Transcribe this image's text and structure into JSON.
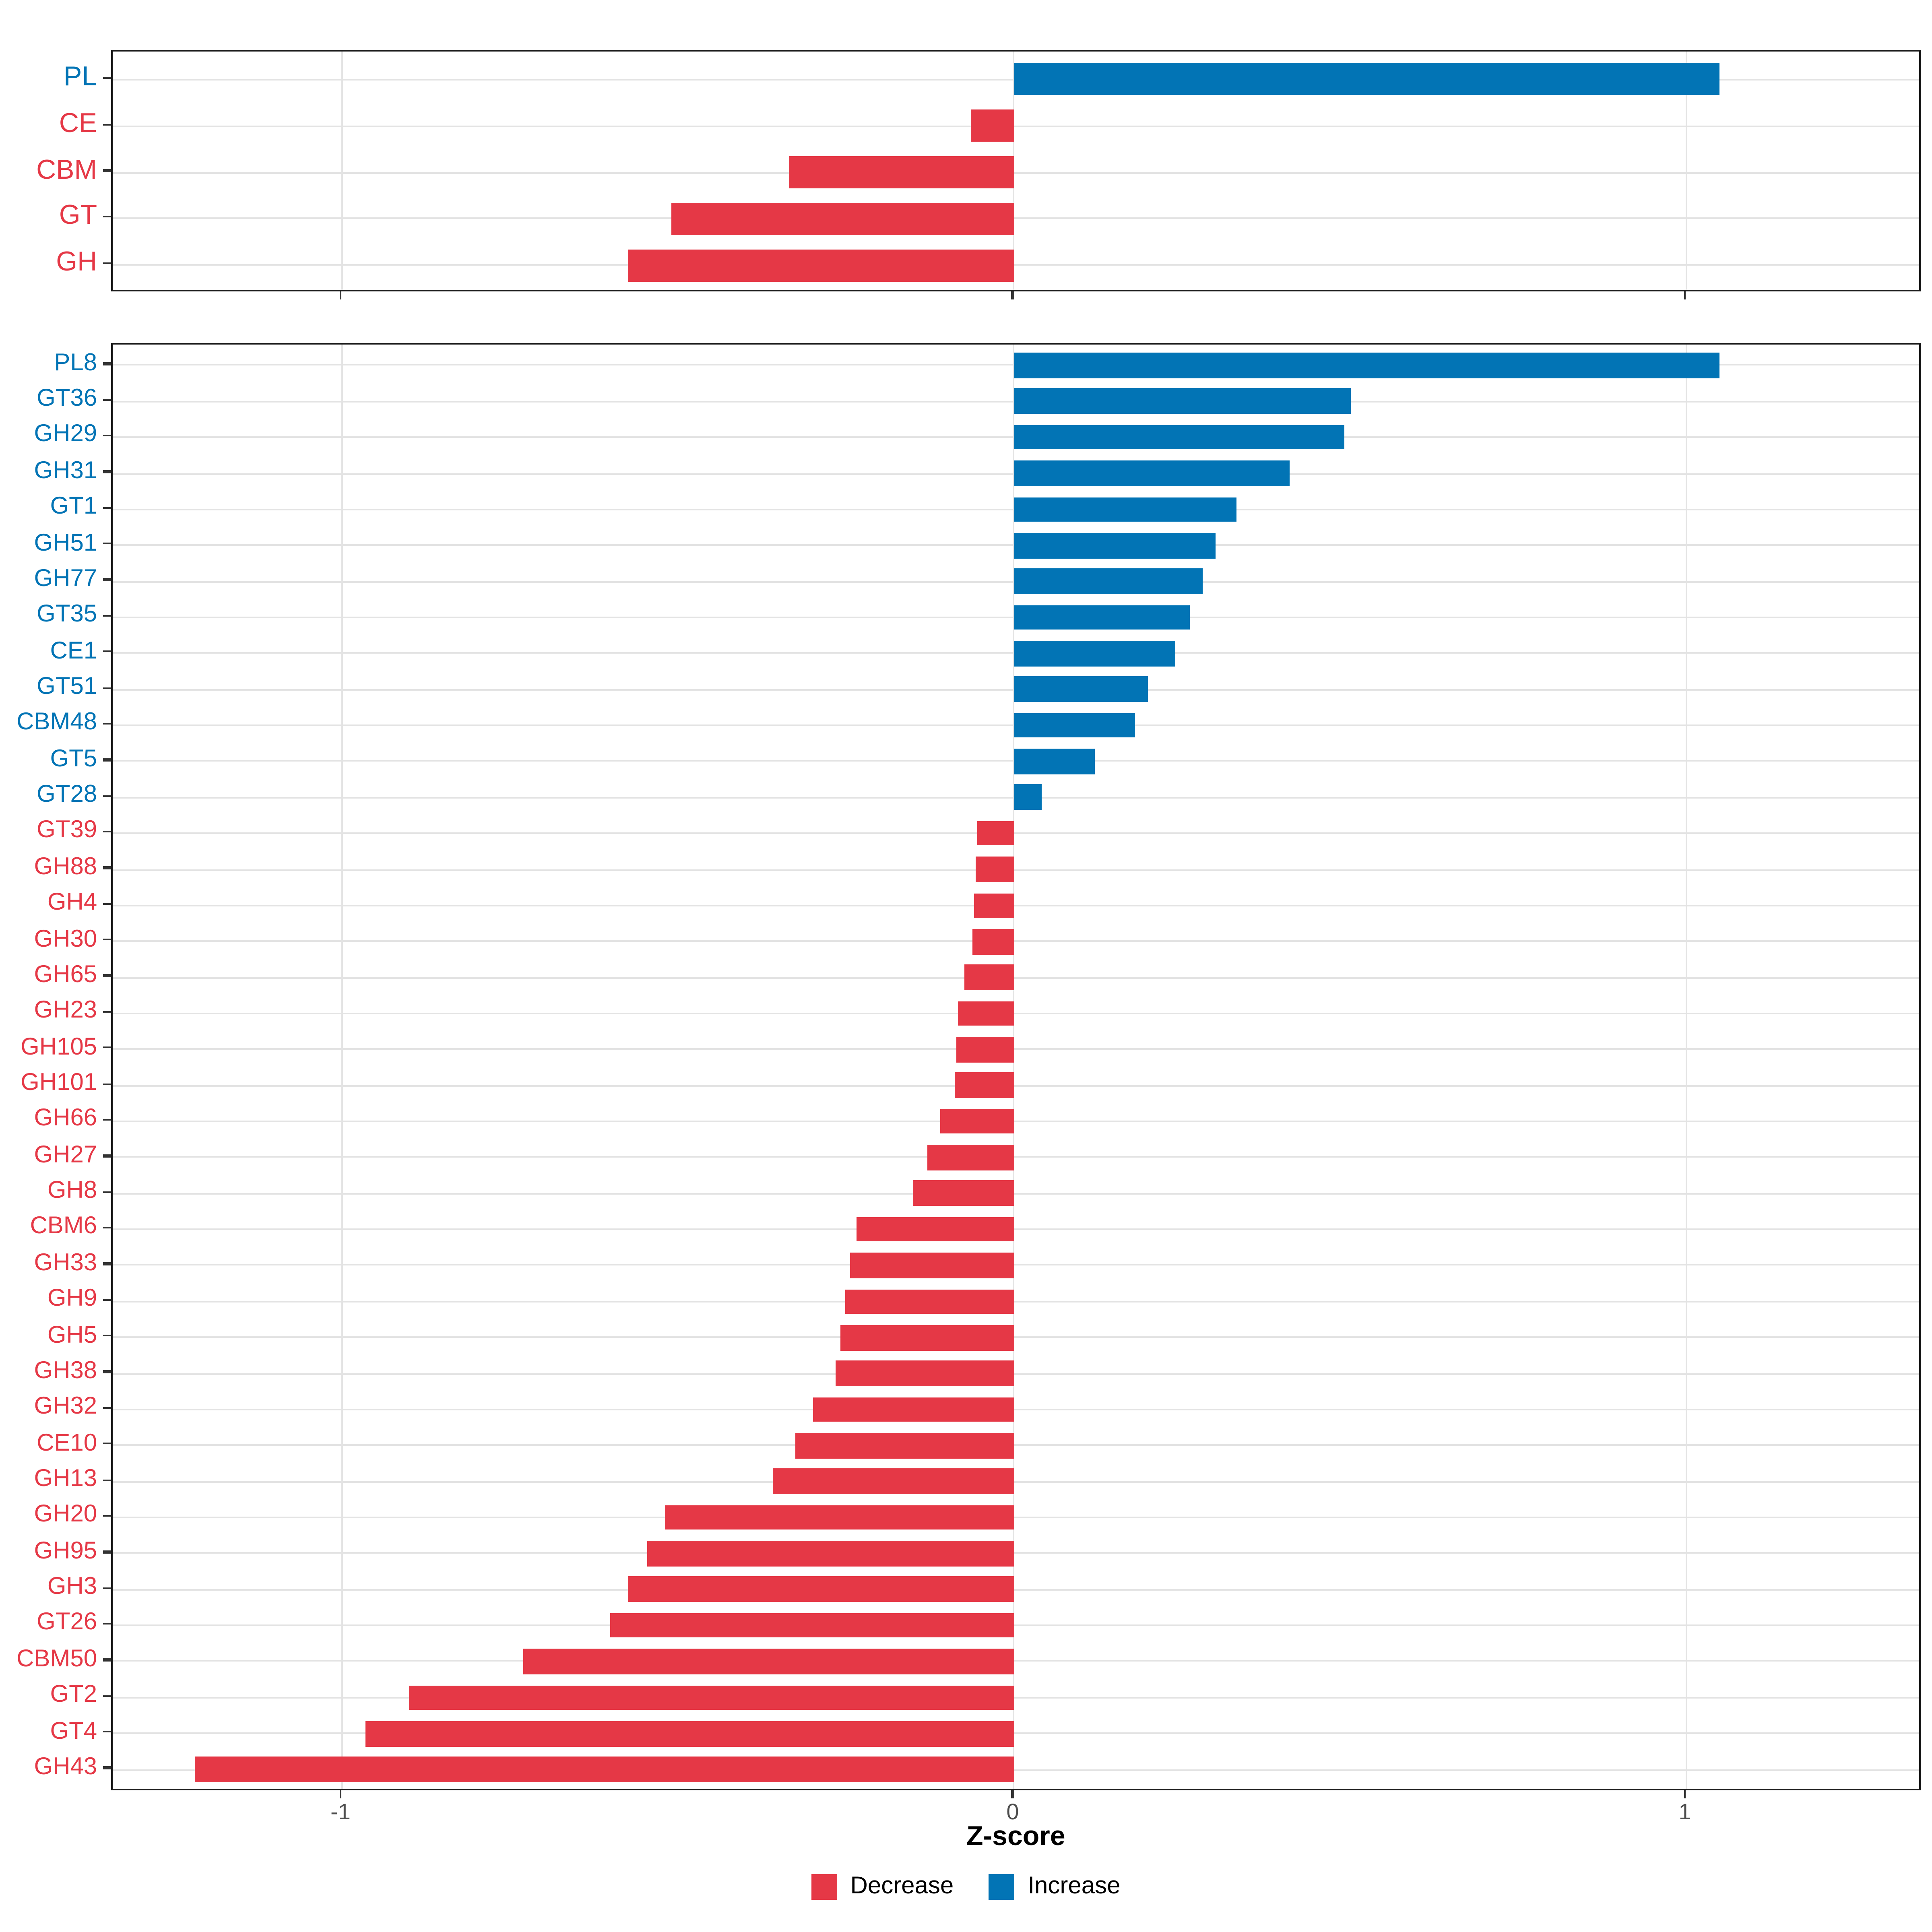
{
  "figure": {
    "background": "#ffffff",
    "colors": {
      "decrease": "#E53846",
      "increase": "#0274B5",
      "grid": "#E3E3E3",
      "panel_border": "#1a1a1a",
      "tick": "#333333",
      "tick_text": "#4d4d4d"
    },
    "axis": {
      "label": "Z-score",
      "ticks": [
        "-1",
        "0",
        "1"
      ],
      "tick_values": [
        -1,
        0,
        1
      ],
      "xlim": [
        -1.34,
        1.35
      ]
    },
    "legend": [
      {
        "label": "Decrease",
        "color": "#E53846"
      },
      {
        "label": "Increase",
        "color": "#0274B5"
      }
    ]
  },
  "chart_data": [
    {
      "type": "bar",
      "orientation": "horizontal",
      "panel": "top",
      "title": "",
      "xlabel": "Z-score",
      "xlim": [
        -1.34,
        1.35
      ],
      "grid": true,
      "categories": [
        "PL",
        "CE",
        "CBM",
        "GT",
        "GH"
      ],
      "values": [
        1.05,
        -0.065,
        -0.335,
        -0.51,
        -0.575
      ],
      "directions": [
        "Increase",
        "Decrease",
        "Decrease",
        "Decrease",
        "Decrease"
      ]
    },
    {
      "type": "bar",
      "orientation": "horizontal",
      "panel": "bottom",
      "title": "",
      "xlabel": "Z-score",
      "xlim": [
        -1.34,
        1.35
      ],
      "grid": true,
      "categories": [
        "PL8",
        "GT36",
        "GH29",
        "GH31",
        "GT1",
        "GH51",
        "GH77",
        "GT35",
        "CE1",
        "GT51",
        "CBM48",
        "GT5",
        "GT28",
        "GT39",
        "GH88",
        "GH4",
        "GH30",
        "GH65",
        "GH23",
        "GH105",
        "GH101",
        "GH66",
        "GH27",
        "GH8",
        "CBM6",
        "GH33",
        "GH9",
        "GH5",
        "GH38",
        "GH32",
        "CE10",
        "GH13",
        "GH20",
        "GH95",
        "GH3",
        "GT26",
        "CBM50",
        "GT2",
        "GT4",
        "GH43"
      ],
      "values": [
        1.05,
        0.5,
        0.49,
        0.41,
        0.33,
        0.3,
        0.28,
        0.26,
        0.24,
        0.2,
        0.18,
        0.12,
        0.04,
        -0.055,
        -0.058,
        -0.06,
        -0.063,
        -0.075,
        -0.085,
        -0.087,
        -0.089,
        -0.11,
        -0.13,
        -0.15,
        -0.235,
        -0.245,
        -0.252,
        -0.258,
        -0.265,
        -0.3,
        -0.325,
        -0.36,
        -0.52,
        -0.545,
        -0.575,
        -0.6,
        -0.73,
        -0.9,
        -0.965,
        -1.22
      ],
      "directions": [
        "Increase",
        "Increase",
        "Increase",
        "Increase",
        "Increase",
        "Increase",
        "Increase",
        "Increase",
        "Increase",
        "Increase",
        "Increase",
        "Increase",
        "Increase",
        "Decrease",
        "Decrease",
        "Decrease",
        "Decrease",
        "Decrease",
        "Decrease",
        "Decrease",
        "Decrease",
        "Decrease",
        "Decrease",
        "Decrease",
        "Decrease",
        "Decrease",
        "Decrease",
        "Decrease",
        "Decrease",
        "Decrease",
        "Decrease",
        "Decrease",
        "Decrease",
        "Decrease",
        "Decrease",
        "Decrease",
        "Decrease",
        "Decrease",
        "Decrease",
        "Decrease"
      ]
    }
  ]
}
